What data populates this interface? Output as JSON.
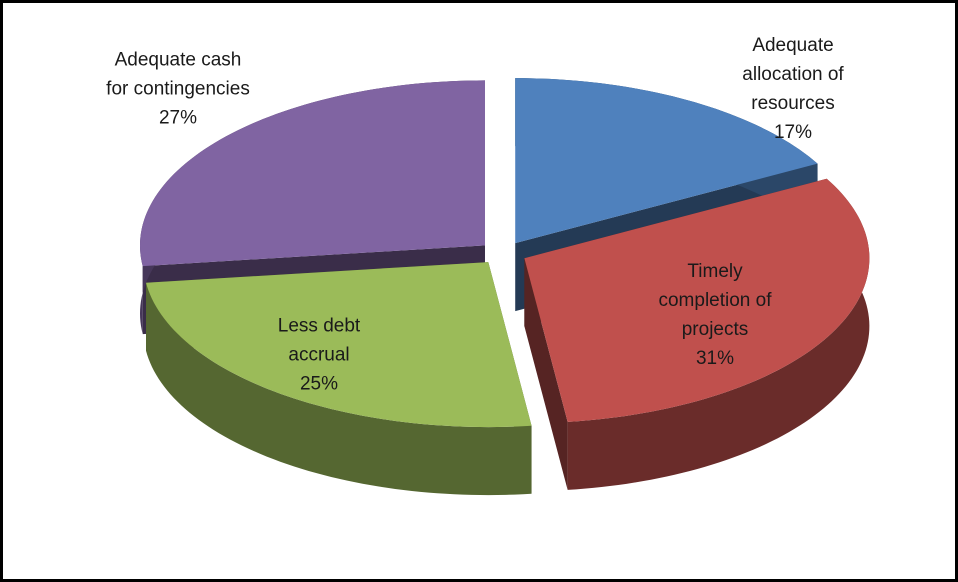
{
  "chart_data": {
    "type": "pie",
    "style": "3d-exploded",
    "categories": [
      "Adequate allocation of resources",
      "Timely completion of projects",
      "Less debt accrual",
      "Adequate cash for contingencies"
    ],
    "values": [
      17,
      31,
      25,
      27
    ],
    "value_labels": [
      "17%",
      "31%",
      "25%",
      "27%"
    ],
    "colors": [
      "#4f81bd",
      "#c0504d",
      "#9bbb59",
      "#8064a2"
    ]
  }
}
